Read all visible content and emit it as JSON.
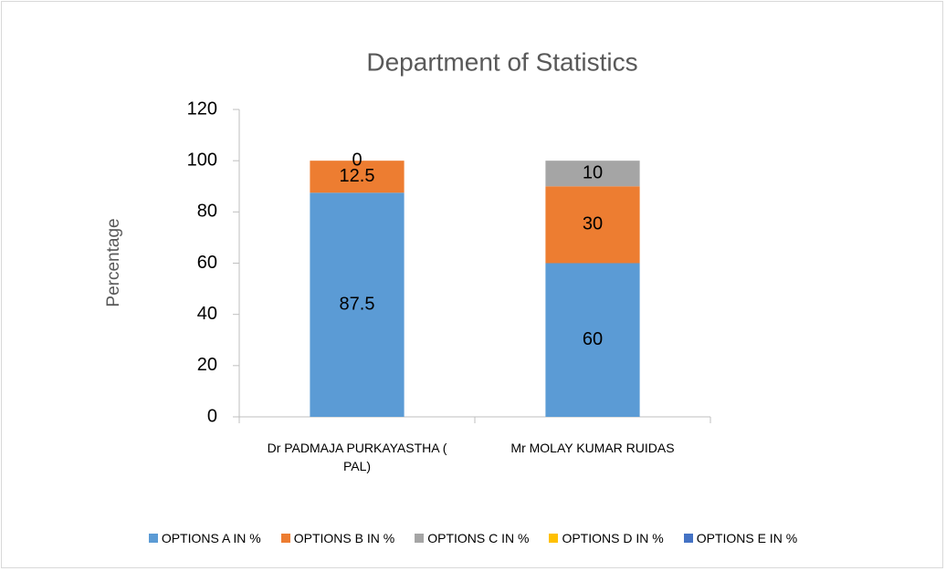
{
  "chart_data": {
    "type": "stacked_bar",
    "title": "Department of Statistics",
    "ylabel": "Percentage",
    "categories": [
      "Dr PADMAJA PURKAYASTHA ( PAL)",
      "Mr MOLAY KUMAR RUIDAS"
    ],
    "series": [
      {
        "name": "OPTIONS A IN %",
        "color": "#5b9bd5",
        "values": [
          87.5,
          60
        ]
      },
      {
        "name": "OPTIONS B IN %",
        "color": "#ed7d31",
        "values": [
          12.5,
          30
        ]
      },
      {
        "name": "OPTIONS C IN %",
        "color": "#a5a5a5",
        "values": [
          0,
          10
        ]
      },
      {
        "name": "OPTIONS D IN %",
        "color": "#ffc000",
        "values": [
          null,
          null
        ]
      },
      {
        "name": "OPTIONS E IN %",
        "color": "#4472c4",
        "values": [
          null,
          null
        ]
      }
    ],
    "ylim": [
      0,
      120
    ],
    "yticks": [
      0,
      20,
      40,
      60,
      80,
      100,
      120
    ],
    "grid": false,
    "legend": "bottom"
  }
}
